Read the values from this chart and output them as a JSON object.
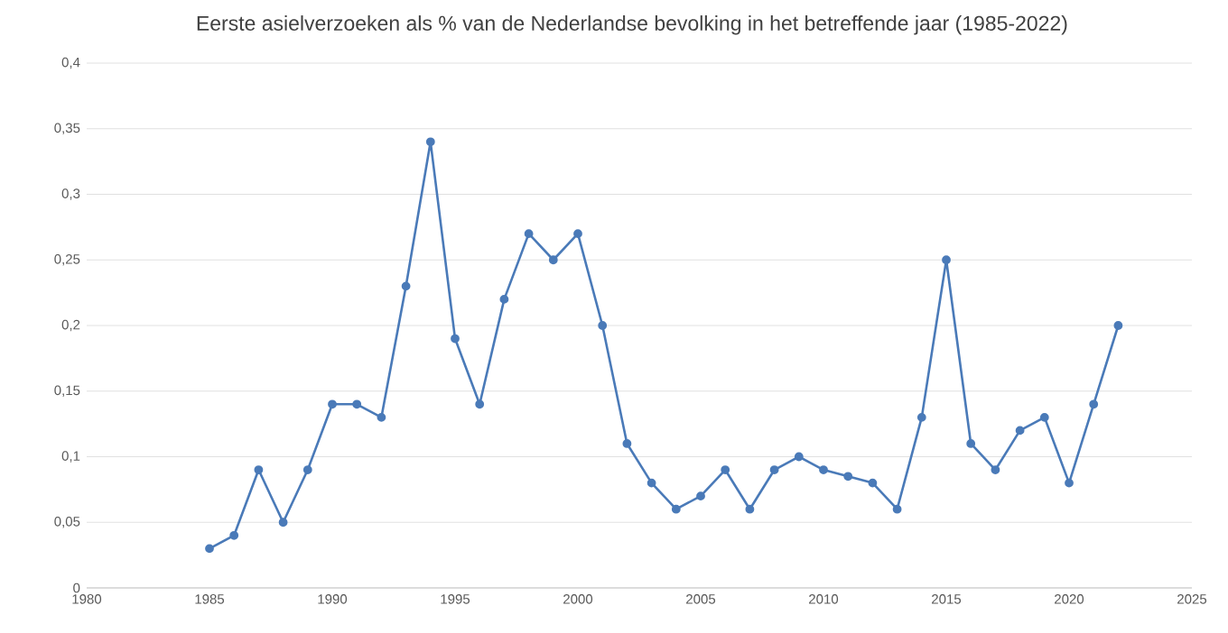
{
  "chart_data": {
    "type": "line",
    "title": "Eerste asielverzoeken als % van de Nederlandse bevolking in het betreffende jaar (1985-2022)",
    "x": [
      1985,
      1986,
      1987,
      1988,
      1989,
      1990,
      1991,
      1992,
      1993,
      1994,
      1995,
      1996,
      1997,
      1998,
      1999,
      2000,
      2001,
      2002,
      2003,
      2004,
      2005,
      2006,
      2007,
      2008,
      2009,
      2010,
      2011,
      2012,
      2013,
      2014,
      2015,
      2016,
      2017,
      2018,
      2019,
      2020,
      2021,
      2022
    ],
    "values": [
      0.03,
      0.04,
      0.09,
      0.05,
      0.09,
      0.14,
      0.14,
      0.13,
      0.23,
      0.34,
      0.19,
      0.14,
      0.22,
      0.27,
      0.25,
      0.27,
      0.2,
      0.11,
      0.08,
      0.06,
      0.07,
      0.09,
      0.06,
      0.09,
      0.1,
      0.09,
      0.085,
      0.08,
      0.06,
      0.13,
      0.25,
      0.11,
      0.09,
      0.12,
      0.13,
      0.08,
      0.14,
      0.2
    ],
    "color": "#4a7ab8",
    "marker": "circle",
    "line_style": "solid",
    "grid": "y",
    "xlim": [
      1980,
      2025
    ],
    "xticks": [
      1980,
      1985,
      1990,
      1995,
      2000,
      2005,
      2010,
      2015,
      2020,
      2025
    ],
    "ylim": [
      0,
      0.4
    ],
    "yticks": [
      0,
      {
        "value": 0.05,
        "label": "0,05"
      },
      {
        "value": 0.1,
        "label": "0,1"
      },
      {
        "value": 0.15,
        "label": "0,15"
      },
      {
        "value": 0.2,
        "label": "0,2"
      },
      {
        "value": 0.25,
        "label": "0,25"
      },
      {
        "value": 0.3,
        "label": "0,3"
      },
      {
        "value": 0.35,
        "label": "0,35"
      },
      {
        "value": 0.4,
        "label": "0,4"
      }
    ]
  }
}
